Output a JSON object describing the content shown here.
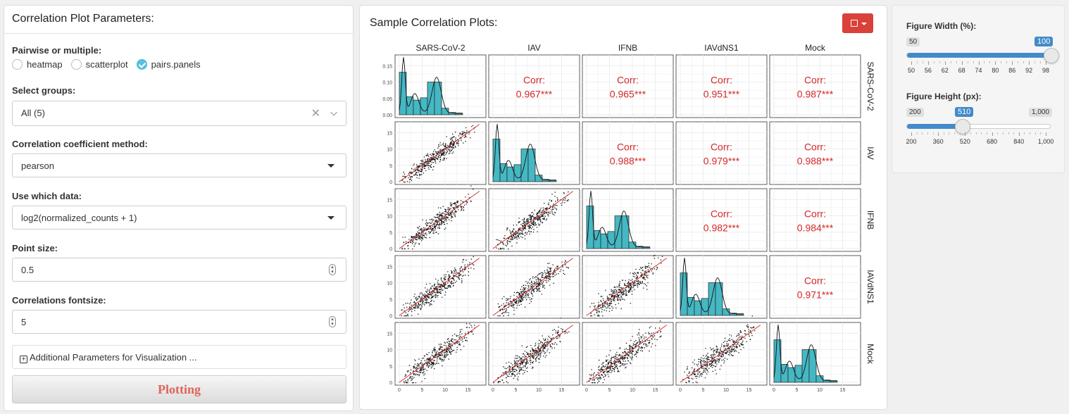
{
  "left": {
    "title": "Correlation Plot Parameters:",
    "pairwise_label": "Pairwise or multiple:",
    "radios": [
      {
        "label": "heatmap",
        "checked": false
      },
      {
        "label": "scatterplot",
        "checked": false
      },
      {
        "label": "pairs.panels",
        "checked": true
      }
    ],
    "groups_label": "Select groups:",
    "groups_value": "All (5)",
    "method_label": "Correlation coefficient method:",
    "method_value": "pearson",
    "data_label": "Use which data:",
    "data_value": "log2(normalized_counts + 1)",
    "point_label": "Point size:",
    "point_value": "0.5",
    "fontsize_label": "Correlations fontsize:",
    "fontsize_value": "5",
    "additional_label": "Additional Parameters for Visualization ...",
    "plot_button": "Plotting"
  },
  "middle": {
    "title": "Sample Correlation Plots:",
    "accent": "#d9413a"
  },
  "right": {
    "width_label": "Figure Width (%):",
    "width_min": "50",
    "width_max": "100",
    "width_value_pct": 1.0,
    "width_ticks": [
      "50",
      "56",
      "62",
      "68",
      "74",
      "80",
      "86",
      "92",
      "98"
    ],
    "height_label": "Figure Height (px):",
    "height_min": "200",
    "height_max": "1,000",
    "height_value": "510",
    "height_value_pct": 0.3875,
    "height_ticks": [
      "200",
      "360",
      "520",
      "680",
      "840",
      "1,000"
    ]
  },
  "chart_data": {
    "type": "pairs.panels",
    "samples": [
      "SARS-CoV-2",
      "IAV",
      "IFNB",
      "IAVdNS1",
      "Mock"
    ],
    "corr_label": "Corr:",
    "correlations": [
      {
        "row": 0,
        "col": 1,
        "value": "0.967***"
      },
      {
        "row": 0,
        "col": 2,
        "value": "0.965***"
      },
      {
        "row": 0,
        "col": 3,
        "value": "0.951***"
      },
      {
        "row": 0,
        "col": 4,
        "value": "0.987***"
      },
      {
        "row": 1,
        "col": 2,
        "value": "0.988***"
      },
      {
        "row": 1,
        "col": 3,
        "value": "0.979***"
      },
      {
        "row": 1,
        "col": 4,
        "value": "0.988***"
      },
      {
        "row": 2,
        "col": 3,
        "value": "0.982***"
      },
      {
        "row": 2,
        "col": 4,
        "value": "0.984***"
      },
      {
        "row": 3,
        "col": 4,
        "value": "0.971***"
      }
    ],
    "diag_y_ticks": [
      "0.15",
      "0.10",
      "0.05",
      "0.00"
    ],
    "scatter_y_ticks": [
      "15",
      "10",
      "5",
      "0"
    ],
    "x_ticks": [
      "0",
      "5",
      "10",
      "15"
    ],
    "histogram_bins": [
      0.13,
      0.055,
      0.045,
      0.052,
      0.1,
      0.1,
      0.02,
      0.007,
      0.003
    ],
    "corr_color": "#d62728",
    "hist_color": "#45b8c4"
  }
}
